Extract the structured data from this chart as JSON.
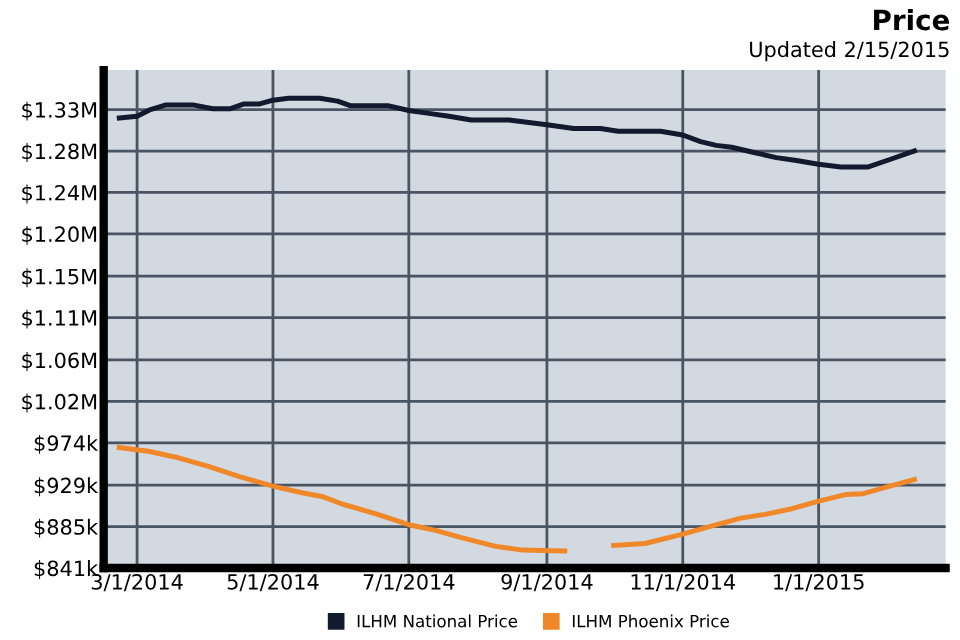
{
  "chart_data": {
    "type": "line",
    "title": "Price",
    "subtitle": "Updated 2/15/2015",
    "x": [
      "2014-02-21",
      "2014-03-01",
      "2014-03-07",
      "2014-03-14",
      "2014-03-26",
      "2014-04-04",
      "2014-04-12",
      "2014-04-18",
      "2014-04-25",
      "2014-05-01",
      "2014-05-08",
      "2014-05-22",
      "2014-05-30",
      "2014-06-05",
      "2014-06-22",
      "2014-07-01",
      "2014-07-10",
      "2014-07-19",
      "2014-07-29",
      "2014-08-15",
      "2014-09-01",
      "2014-09-13",
      "2014-09-25",
      "2014-10-03",
      "2014-10-22",
      "2014-11-01",
      "2014-11-09",
      "2014-11-16",
      "2014-11-23",
      "2014-12-02",
      "2014-12-13",
      "2014-12-22",
      "2015-01-01",
      "2015-01-11",
      "2015-01-23",
      "2015-02-02",
      "2015-02-13"
    ],
    "series": [
      {
        "name": "ILHM National Price",
        "color": "#111a2e",
        "values": [
          1319000,
          1321000,
          1328000,
          1333000,
          1333000,
          1329000,
          1329000,
          1334000,
          1334000,
          1338000,
          1340000,
          1340000,
          1337000,
          1332000,
          1332000,
          1327000,
          1324000,
          1321000,
          1317000,
          1317000,
          1312000,
          1308000,
          1308000,
          1305000,
          1305000,
          1301000,
          1294000,
          1290000,
          1288000,
          1283000,
          1277000,
          1274000,
          1270000,
          1267000,
          1267000,
          1275000,
          1284000
        ]
      },
      {
        "name": "ILHM Phoenix Price",
        "color": "#f0882a",
        "x": [
          "2014-02-21",
          "2014-03-06",
          "2014-03-18",
          "2014-04-02",
          "2014-04-16",
          "2014-05-01",
          "2014-05-14",
          "2014-05-23",
          "2014-06-01",
          "2014-06-17",
          "2014-07-01",
          "2014-07-13",
          "2014-07-25",
          "2014-08-09",
          "2014-08-21",
          "2014-09-09",
          "2014-09-18",
          "2014-10-01",
          "2014-10-15",
          "2014-11-01",
          "2014-11-13",
          "2014-11-27",
          "2014-12-08",
          "2014-12-20",
          "2015-01-01",
          "2015-01-13",
          "2015-01-21",
          "2015-02-02",
          "2015-02-13"
        ],
        "values": [
          969000,
          965000,
          959000,
          949000,
          938000,
          928000,
          921000,
          917000,
          909000,
          898000,
          887000,
          881000,
          873000,
          864000,
          860000,
          859000,
          null,
          865000,
          867000,
          877000,
          885000,
          894000,
          898000,
          904000,
          912000,
          919000,
          920000,
          928000,
          935000
        ]
      }
    ],
    "xlim": [
      "2014-02-14",
      "2015-02-27"
    ],
    "xticks": [
      {
        "value": "2014-03-01",
        "label": "3/1/2014"
      },
      {
        "value": "2014-05-01",
        "label": "5/1/2014"
      },
      {
        "value": "2014-07-01",
        "label": "7/1/2014"
      },
      {
        "value": "2014-09-01",
        "label": "9/1/2014"
      },
      {
        "value": "2014-11-01",
        "label": "11/1/2014"
      },
      {
        "value": "2015-01-01",
        "label": "1/1/2015"
      }
    ],
    "ylim": [
      841000,
      1370000
    ],
    "yticks": [
      {
        "value": 841000,
        "label": "$841k"
      },
      {
        "value": 885000,
        "label": "$885k"
      },
      {
        "value": 929000,
        "label": "$929k"
      },
      {
        "value": 974000,
        "label": "$974k"
      },
      {
        "value": 1018000,
        "label": "$1.02M"
      },
      {
        "value": 1062000,
        "label": "$1.06M"
      },
      {
        "value": 1107000,
        "label": "$1.11M"
      },
      {
        "value": 1151000,
        "label": "$1.15M"
      },
      {
        "value": 1196000,
        "label": "$1.20M"
      },
      {
        "value": 1240000,
        "label": "$1.24M"
      },
      {
        "value": 1284000,
        "label": "$1.28M"
      },
      {
        "value": 1328000,
        "label": "$1.33M"
      }
    ],
    "grid": true,
    "legend": "bottom",
    "line_style": "solid",
    "marker": "none"
  }
}
